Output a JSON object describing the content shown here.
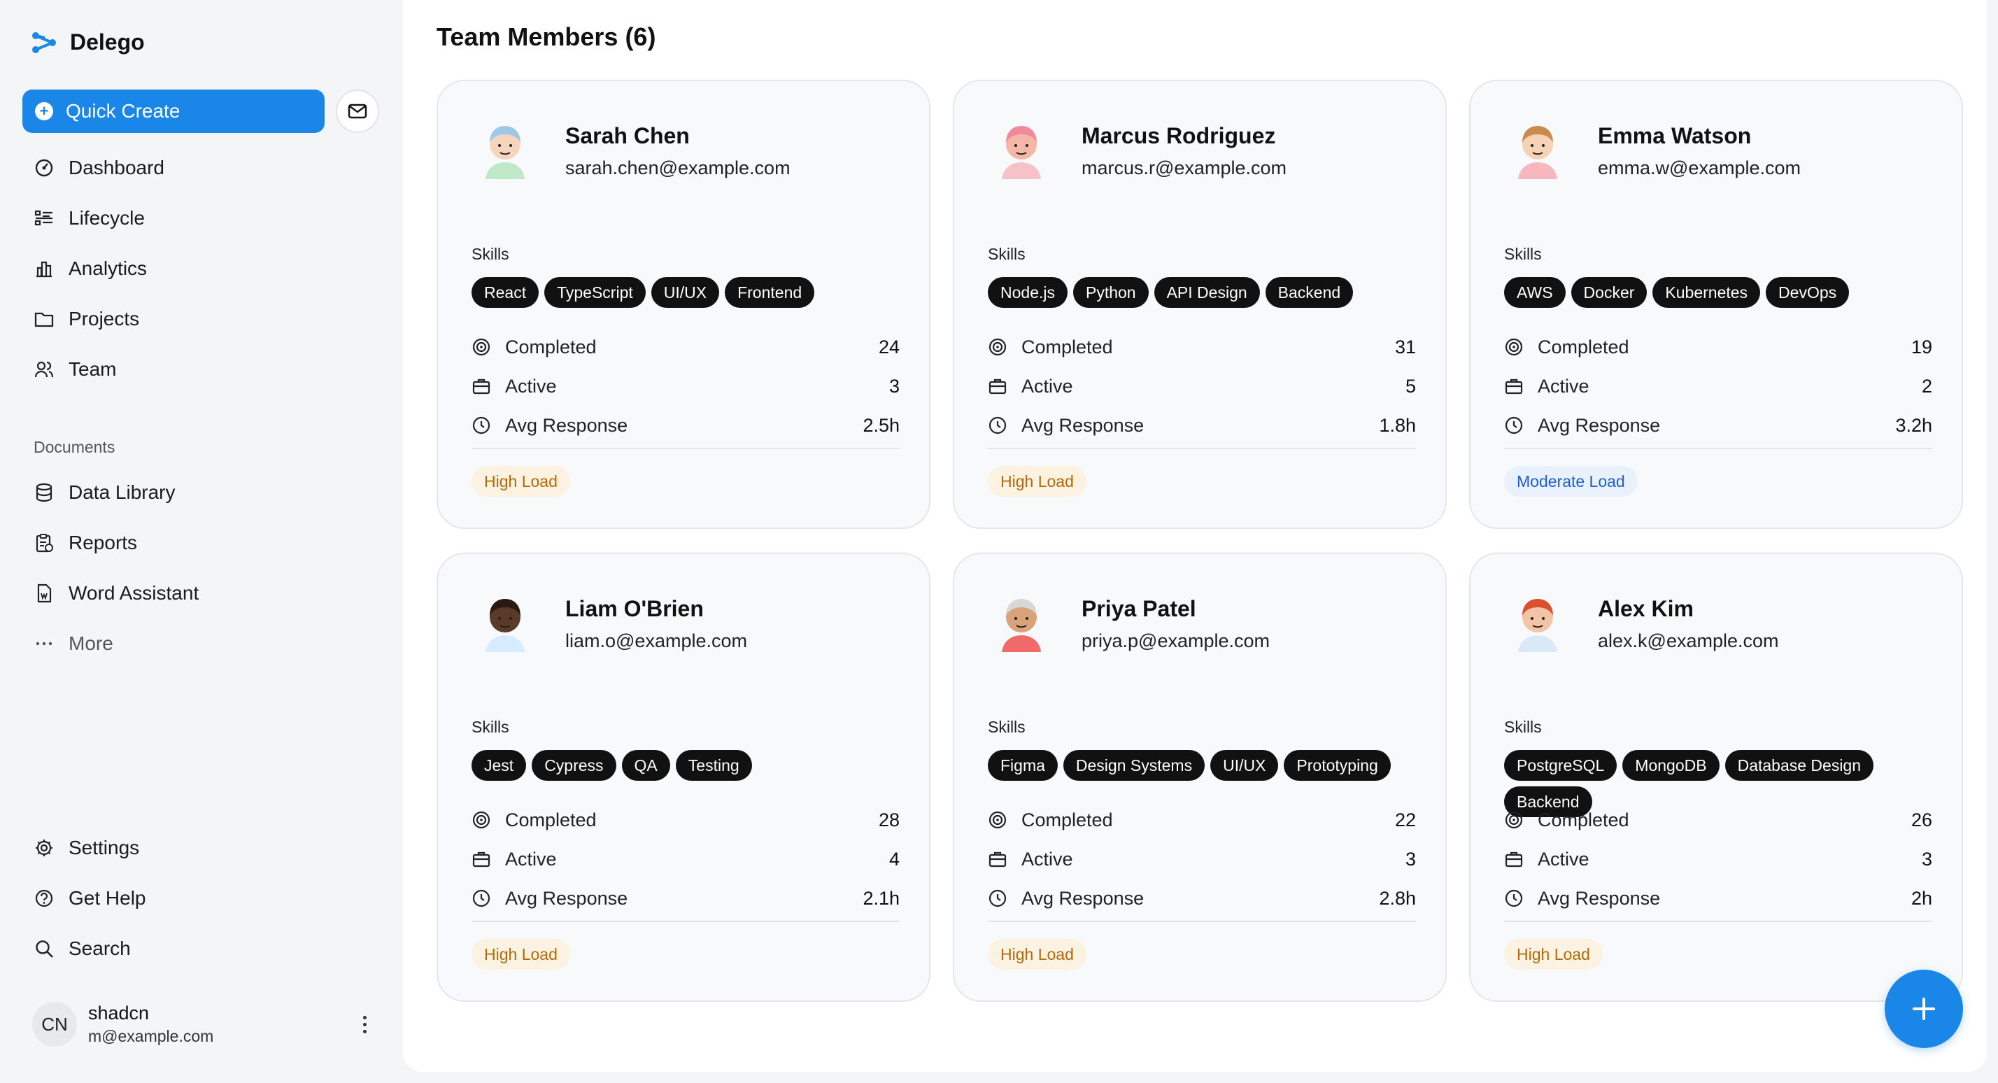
{
  "brand": {
    "name": "Delego"
  },
  "sidebar": {
    "quick_create": "Quick Create",
    "nav": [
      {
        "label": "Dashboard",
        "icon": "dashboard-icon"
      },
      {
        "label": "Lifecycle",
        "icon": "list-icon"
      },
      {
        "label": "Analytics",
        "icon": "chart-icon"
      },
      {
        "label": "Projects",
        "icon": "folder-icon"
      },
      {
        "label": "Team",
        "icon": "users-icon"
      }
    ],
    "documents_label": "Documents",
    "documents": [
      {
        "label": "Data Library",
        "icon": "database-icon"
      },
      {
        "label": "Reports",
        "icon": "clipboard-icon"
      },
      {
        "label": "Word Assistant",
        "icon": "file-icon"
      },
      {
        "label": "More",
        "icon": "ellipsis-icon"
      }
    ],
    "secondary": [
      {
        "label": "Settings",
        "icon": "gear-icon"
      },
      {
        "label": "Get Help",
        "icon": "help-icon"
      },
      {
        "label": "Search",
        "icon": "search-icon"
      }
    ],
    "user": {
      "initials": "CN",
      "name": "shadcn",
      "email": "m@example.com"
    }
  },
  "main": {
    "title": "Team Members (6)",
    "skills_label": "Skills",
    "stat_labels": {
      "completed": "Completed",
      "active": "Active",
      "avg_response": "Avg Response"
    },
    "members": [
      {
        "name": "Sarah Chen",
        "email": "sarah.chen@example.com",
        "skills": [
          "React",
          "TypeScript",
          "UI/UX",
          "Frontend"
        ],
        "completed": "24",
        "active": "3",
        "avg_response": "2.5h",
        "load": "High Load",
        "load_level": "high"
      },
      {
        "name": "Marcus Rodriguez",
        "email": "marcus.r@example.com",
        "skills": [
          "Node.js",
          "Python",
          "API Design",
          "Backend"
        ],
        "completed": "31",
        "active": "5",
        "avg_response": "1.8h",
        "load": "High Load",
        "load_level": "high"
      },
      {
        "name": "Emma Watson",
        "email": "emma.w@example.com",
        "skills": [
          "AWS",
          "Docker",
          "Kubernetes",
          "DevOps"
        ],
        "completed": "19",
        "active": "2",
        "avg_response": "3.2h",
        "load": "Moderate Load",
        "load_level": "moderate"
      },
      {
        "name": "Liam O'Brien",
        "email": "liam.o@example.com",
        "skills": [
          "Jest",
          "Cypress",
          "QA",
          "Testing"
        ],
        "completed": "28",
        "active": "4",
        "avg_response": "2.1h",
        "load": "High Load",
        "load_level": "high"
      },
      {
        "name": "Priya Patel",
        "email": "priya.p@example.com",
        "skills": [
          "Figma",
          "Design Systems",
          "UI/UX",
          "Prototyping"
        ],
        "completed": "22",
        "active": "3",
        "avg_response": "2.8h",
        "load": "High Load",
        "load_level": "high"
      },
      {
        "name": "Alex Kim",
        "email": "alex.k@example.com",
        "skills": [
          "PostgreSQL",
          "MongoDB",
          "Database Design",
          "Backend"
        ],
        "completed": "26",
        "active": "3",
        "avg_response": "2h",
        "load": "High Load",
        "load_level": "high"
      }
    ]
  },
  "colors": {
    "accent": "#1a86e8",
    "high_load_text": "#b26a0a",
    "high_load_bg": "#fbf2e2",
    "moderate_load_text": "#1f5fcf",
    "moderate_load_bg": "#e9f1fd"
  }
}
